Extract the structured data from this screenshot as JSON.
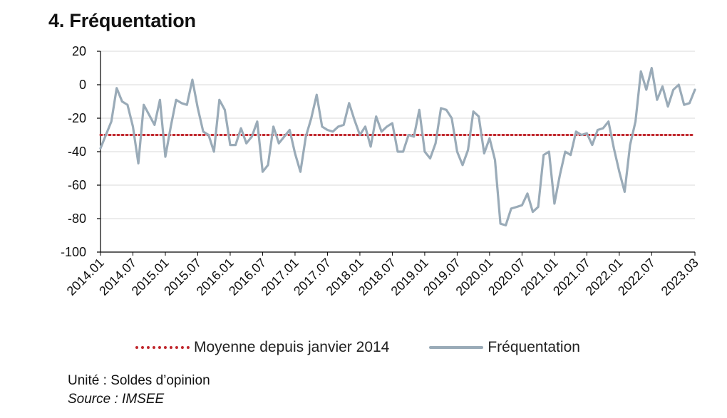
{
  "title": "4. Fréquentation",
  "notes": {
    "unit": "Unité : Soldes d’opinion",
    "source": "Source : IMSEE"
  },
  "colors": {
    "series_line": "#9aabb8",
    "average_line": "#c0272d",
    "grid": "#d9d9d9",
    "axis": "#000000"
  },
  "chart_data": {
    "type": "line",
    "ylim": [
      -100,
      20
    ],
    "yticks": [
      -100,
      -80,
      -60,
      -40,
      -20,
      0,
      20
    ],
    "grid": true,
    "legend_position": "bottom",
    "x_start": "2014.01",
    "x_end": "2023.03",
    "xticks": [
      "2014.01",
      "2014.07",
      "2015.01",
      "2015.07",
      "2016.01",
      "2016.07",
      "2017.01",
      "2017.07",
      "2018.01",
      "2018.07",
      "2019.01",
      "2019.07",
      "2020.01",
      "2020.07",
      "2021.01",
      "2021.07",
      "2022.01",
      "2022.07",
      "2023.03"
    ],
    "series": [
      {
        "name": "Moyenne depuis janvier 2014",
        "style": "dotted",
        "value": -30
      },
      {
        "name": "Fréquentation",
        "style": "solid",
        "values": [
          -38,
          -30,
          -22,
          -2,
          -10,
          -12,
          -25,
          -47,
          -12,
          -18,
          -24,
          -9,
          -43,
          -25,
          -9,
          -11,
          -12,
          3,
          -14,
          -28,
          -30,
          -40,
          -9,
          -15,
          -36,
          -36,
          -26,
          -35,
          -31,
          -22,
          -52,
          -48,
          -25,
          -35,
          -31,
          -27,
          -41,
          -52,
          -31,
          -20,
          -6,
          -25,
          -27,
          -28,
          -25,
          -24,
          -11,
          -21,
          -30,
          -25,
          -37,
          -19,
          -28,
          -25,
          -23,
          -40,
          -40,
          -30,
          -31,
          -15,
          -40,
          -44,
          -35,
          -14,
          -15,
          -20,
          -40,
          -48,
          -39,
          -16,
          -19,
          -41,
          -32,
          -45,
          -83,
          -84,
          -74,
          -73,
          -72,
          -65,
          -76,
          -73,
          -42,
          -40,
          -71,
          -54,
          -40,
          -42,
          -28,
          -30,
          -29,
          -36,
          -27,
          -26,
          -22,
          -38,
          -52,
          -64,
          -36,
          -22,
          8,
          -3,
          10,
          -9,
          -1,
          -13,
          -3,
          0,
          -12,
          -11,
          -3
        ]
      }
    ]
  }
}
